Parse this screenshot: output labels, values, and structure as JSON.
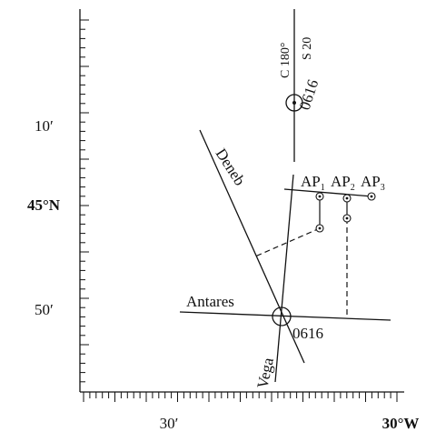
{
  "axis": {
    "y_labels": {
      "top": "10′",
      "middle": "45°N",
      "bottom": "50′"
    },
    "x_labels": {
      "left": "30′",
      "right": "30°W"
    }
  },
  "fix_top": {
    "time": "0616",
    "course": "C 180°",
    "speed": "S 20"
  },
  "lop_labels": {
    "deneb": "Deneb",
    "antares": "Antares",
    "vega": "Vega"
  },
  "assumed_positions": [
    {
      "base": "AP",
      "index": "1"
    },
    {
      "base": "AP",
      "index": "2"
    },
    {
      "base": "AP",
      "index": "3"
    }
  ],
  "fix_bottom": {
    "time": "0616"
  }
}
